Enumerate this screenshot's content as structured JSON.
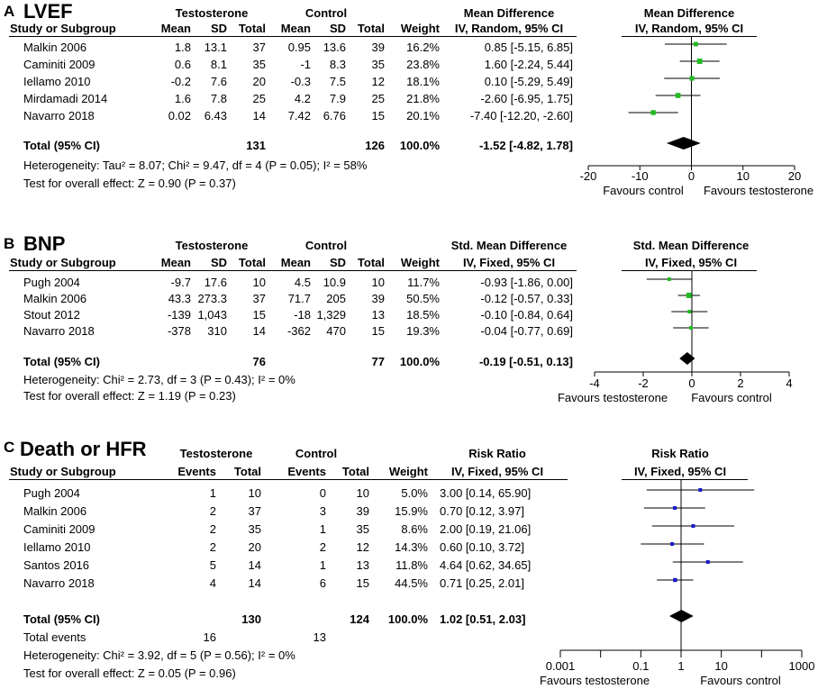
{
  "chart_data": [
    {
      "type": "forest",
      "panel_label": "A",
      "title": "LVEF",
      "group1_name": "Testosterone",
      "group2_name": "Control",
      "columns": [
        "Study or Subgroup",
        "Mean",
        "SD",
        "Total",
        "Mean",
        "SD",
        "Total",
        "Weight",
        "IV, Random, 95% CI"
      ],
      "effect_header": "Mean Difference",
      "plot_header": "Mean Difference",
      "plot_subheader": "IV, Random, 95% CI",
      "studies": [
        {
          "name": "Malkin 2006",
          "cells": [
            "1.8",
            "13.1",
            "37",
            "0.95",
            "13.6",
            "39",
            "16.2%",
            "0.85 [-5.15, 6.85]"
          ],
          "est": 0.85,
          "lo": -5.15,
          "hi": 6.85,
          "weight": 16.2
        },
        {
          "name": "Caminiti 2009",
          "cells": [
            "0.6",
            "8.1",
            "35",
            "-1",
            "8.3",
            "35",
            "23.8%",
            "1.60 [-2.24, 5.44]"
          ],
          "est": 1.6,
          "lo": -2.24,
          "hi": 5.44,
          "weight": 23.8
        },
        {
          "name": "Iellamo 2010",
          "cells": [
            "-0.2",
            "7.6",
            "20",
            "-0.3",
            "7.5",
            "12",
            "18.1%",
            "0.10 [-5.29, 5.49]"
          ],
          "est": 0.1,
          "lo": -5.29,
          "hi": 5.49,
          "weight": 18.1
        },
        {
          "name": "Mirdamadi 2014",
          "cells": [
            "1.6",
            "7.8",
            "25",
            "4.2",
            "7.9",
            "25",
            "21.8%",
            "-2.60 [-6.95, 1.75]"
          ],
          "est": -2.6,
          "lo": -6.95,
          "hi": 1.75,
          "weight": 21.8
        },
        {
          "name": "Navarro 2018",
          "cells": [
            "0.02",
            "6.43",
            "14",
            "7.42",
            "6.76",
            "15",
            "20.1%",
            "-7.40 [-12.20, -2.60]"
          ],
          "est": -7.4,
          "lo": -12.2,
          "hi": -2.6,
          "weight": 20.1
        }
      ],
      "total": {
        "name": "Total (95% CI)",
        "cells": [
          "",
          "",
          "131",
          "",
          "",
          "126",
          "100.0%",
          "-1.52 [-4.82, 1.78]"
        ],
        "est": -1.52,
        "lo": -4.82,
        "hi": 1.78
      },
      "notes": [
        "Heterogeneity: Tau² = 8.07; Chi² = 9.47, df = 4 (P = 0.05); I² = 58%",
        "Test for overall effect: Z = 0.90 (P = 0.37)"
      ],
      "axis": {
        "scale": "linear",
        "min": -20,
        "max": 20,
        "null": 0,
        "ticks": [
          -20,
          -10,
          0,
          10,
          20
        ],
        "tick_labels": [
          "-20",
          "-10",
          "0",
          "10",
          "20"
        ]
      },
      "favours_left": "Favours control",
      "favours_right": "Favours testosterone",
      "marker_color": "#22bb22"
    },
    {
      "type": "forest",
      "panel_label": "B",
      "title": "BNP",
      "group1_name": "Testosterone",
      "group2_name": "Control",
      "columns": [
        "Study or Subgroup",
        "Mean",
        "SD",
        "Total",
        "Mean",
        "SD",
        "Total",
        "Weight",
        "IV, Fixed, 95% CI"
      ],
      "effect_header": "Std. Mean Difference",
      "plot_header": "Std. Mean Difference",
      "plot_subheader": "IV, Fixed, 95% CI",
      "studies": [
        {
          "name": "Pugh 2004",
          "cells": [
            "-9.7",
            "17.6",
            "10",
            "4.5",
            "10.9",
            "10",
            "11.7%",
            "-0.93 [-1.86, 0.00]"
          ],
          "est": -0.93,
          "lo": -1.86,
          "hi": 0.0,
          "weight": 11.7
        },
        {
          "name": "Malkin 2006",
          "cells": [
            "43.3",
            "273.3",
            "37",
            "71.7",
            "205",
            "39",
            "50.5%",
            "-0.12 [-0.57, 0.33]"
          ],
          "est": -0.12,
          "lo": -0.57,
          "hi": 0.33,
          "weight": 50.5
        },
        {
          "name": "Stout 2012",
          "cells": [
            "-139",
            "1,043",
            "15",
            "-18",
            "1,329",
            "13",
            "18.5%",
            "-0.10 [-0.84, 0.64]"
          ],
          "est": -0.1,
          "lo": -0.84,
          "hi": 0.64,
          "weight": 18.5
        },
        {
          "name": "Navarro 2018",
          "cells": [
            "-378",
            "310",
            "14",
            "-362",
            "470",
            "15",
            "19.3%",
            "-0.04 [-0.77, 0.69]"
          ],
          "est": -0.04,
          "lo": -0.77,
          "hi": 0.69,
          "weight": 19.3
        }
      ],
      "total": {
        "name": "Total (95% CI)",
        "cells": [
          "",
          "",
          "76",
          "",
          "",
          "77",
          "100.0%",
          "-0.19 [-0.51, 0.13]"
        ],
        "est": -0.19,
        "lo": -0.51,
        "hi": 0.13
      },
      "notes": [
        "Heterogeneity: Chi² = 2.73, df = 3 (P = 0.43); I² = 0%",
        "Test for overall effect: Z = 1.19 (P = 0.23)"
      ],
      "axis": {
        "scale": "linear",
        "min": -4,
        "max": 4,
        "null": 0,
        "ticks": [
          -4,
          -2,
          0,
          2,
          4
        ],
        "tick_labels": [
          "-4",
          "-2",
          "0",
          "2",
          "4"
        ]
      },
      "favours_left": "Favours testosterone",
      "favours_right": "Favours control",
      "marker_color": "#22bb22"
    },
    {
      "type": "forest",
      "panel_label": "C",
      "title": "Death or HFR",
      "group1_name": "Testosterone",
      "group2_name": "Control",
      "columns": [
        "Study or Subgroup",
        "Events",
        "Total",
        "Events",
        "Total",
        "Weight",
        "IV, Fixed, 95% CI"
      ],
      "effect_header": "Risk Ratio",
      "plot_header": "Risk Ratio",
      "plot_subheader": "IV, Fixed, 95% CI",
      "studies": [
        {
          "name": "Pugh 2004",
          "cells": [
            "1",
            "10",
            "0",
            "10",
            "5.0%",
            "3.00 [0.14, 65.90]"
          ],
          "est": 3.0,
          "lo": 0.14,
          "hi": 65.9,
          "weight": 5.0
        },
        {
          "name": "Malkin 2006",
          "cells": [
            "2",
            "37",
            "3",
            "39",
            "15.9%",
            "0.70 [0.12, 3.97]"
          ],
          "est": 0.7,
          "lo": 0.12,
          "hi": 3.97,
          "weight": 15.9
        },
        {
          "name": "Caminiti 2009",
          "cells": [
            "2",
            "35",
            "1",
            "35",
            "8.6%",
            "2.00 [0.19, 21.06]"
          ],
          "est": 2.0,
          "lo": 0.19,
          "hi": 21.06,
          "weight": 8.6
        },
        {
          "name": "Iellamo 2010",
          "cells": [
            "2",
            "20",
            "2",
            "12",
            "14.3%",
            "0.60 [0.10, 3.72]"
          ],
          "est": 0.6,
          "lo": 0.1,
          "hi": 3.72,
          "weight": 14.3
        },
        {
          "name": "Santos 2016",
          "cells": [
            "5",
            "14",
            "1",
            "13",
            "11.8%",
            "4.64 [0.62, 34.65]"
          ],
          "est": 4.64,
          "lo": 0.62,
          "hi": 34.65,
          "weight": 11.8
        },
        {
          "name": "Navarro 2018",
          "cells": [
            "4",
            "14",
            "6",
            "15",
            "44.5%",
            "0.71 [0.25, 2.01]"
          ],
          "est": 0.71,
          "lo": 0.25,
          "hi": 2.01,
          "weight": 44.5
        }
      ],
      "total": {
        "name": "Total (95% CI)",
        "cells": [
          "",
          "130",
          "",
          "124",
          "100.0%",
          "1.02 [0.51, 2.03]"
        ],
        "est": 1.02,
        "lo": 0.51,
        "hi": 2.03
      },
      "total_events": {
        "label": "Total events",
        "group1": "16",
        "group2": "13"
      },
      "notes": [
        "Heterogeneity: Chi² = 3.92, df = 5 (P = 0.56); I² = 0%",
        "Test for overall effect: Z = 0.05 (P = 0.96)"
      ],
      "axis": {
        "scale": "log",
        "min": 0.001,
        "max": 1000,
        "null": 1,
        "ticks": [
          0.001,
          0.1,
          1,
          10,
          1000
        ],
        "tick_labels": [
          "0.001",
          "0.1",
          "1",
          "10",
          "1000"
        ]
      },
      "favours_left": "Favours testosterone",
      "favours_right": "Favours control",
      "marker_color": "#1a1acc"
    }
  ]
}
